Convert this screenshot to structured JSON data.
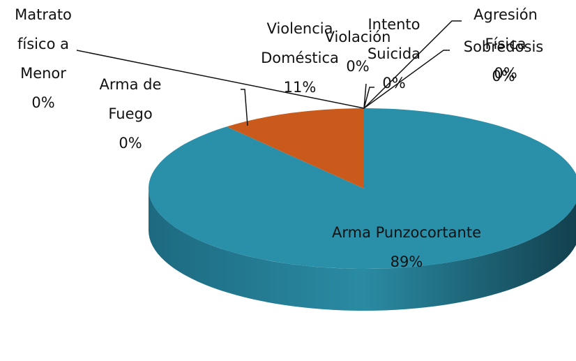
{
  "chart_data": {
    "type": "pie",
    "categories": [
      "Arma Punzocortante",
      "Violencia Doméstica",
      "Arma de Fuego",
      "Matrato físico a Menor",
      "Violación",
      "Intento Suicida",
      "Agresión Física",
      "Sobredosis"
    ],
    "values": [
      89,
      11,
      0,
      0,
      0,
      0,
      0,
      0
    ],
    "value_labels": [
      "89%",
      "11%",
      "0%",
      "0%",
      "0%",
      "0%",
      "0%",
      "0%"
    ],
    "colors": [
      "#2a8fa8",
      "#c95a1c",
      "#8aa23a",
      "#6b4f8f",
      "#3fa0c4",
      "#e08a2e",
      "#5a7fc0",
      "#b04a4a"
    ]
  }
}
